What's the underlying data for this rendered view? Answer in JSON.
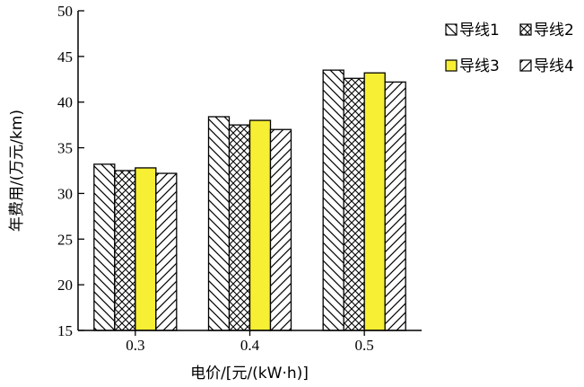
{
  "chart_data": {
    "type": "bar",
    "title": "",
    "xlabel": "电价/[元/(kW·h)]",
    "ylabel": "年费用/(万元/km)",
    "ylim": [
      15,
      50
    ],
    "yticks": [
      15,
      20,
      25,
      30,
      35,
      40,
      45,
      50
    ],
    "categories": [
      "0.3",
      "0.4",
      "0.5"
    ],
    "series": [
      {
        "name": "导线1",
        "values": [
          33.2,
          38.4,
          43.5
        ],
        "fill": "hatch-back-diagonal",
        "color": "#ffffff"
      },
      {
        "name": "导线2",
        "values": [
          32.5,
          37.5,
          42.6
        ],
        "fill": "crosshatch",
        "color": "#ffffff"
      },
      {
        "name": "导线3",
        "values": [
          32.8,
          38.0,
          43.2
        ],
        "fill": "solid",
        "color": "#f7ef33"
      },
      {
        "name": "导线4",
        "values": [
          32.2,
          37.0,
          42.2
        ],
        "fill": "hatch-forward-diagonal",
        "color": "#ffffff"
      }
    ],
    "grid": false,
    "legend": "top-right"
  }
}
